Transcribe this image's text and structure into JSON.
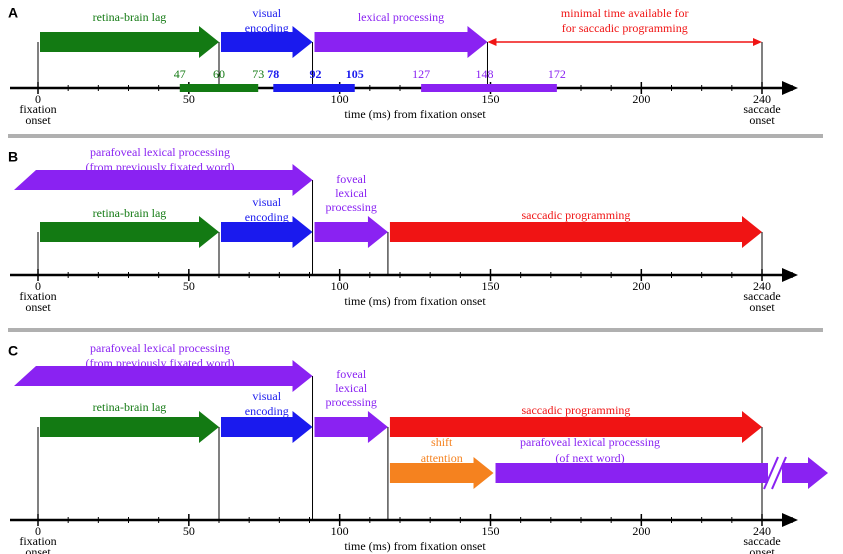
{
  "panels": [
    {
      "letter": "A",
      "arrows": [
        {
          "lines": [
            "retina-brain lag"
          ]
        },
        {
          "lines": [
            "visual",
            "encoding"
          ]
        },
        {
          "lines": [
            "lexical processing"
          ]
        },
        {
          "lines": [
            "minimal time available for",
            "for saccadic programming"
          ]
        }
      ],
      "markers": [
        "47",
        "60",
        "73",
        "78",
        "92",
        "105",
        "127",
        "148",
        "172"
      ],
      "ticks": [
        "0",
        "50",
        "100",
        "150",
        "200",
        "240"
      ],
      "start_label": [
        "fixation",
        "onset"
      ],
      "end_label": [
        "saccade",
        "onset"
      ],
      "axis_title": "time (ms) from fixation onset"
    },
    {
      "letter": "B",
      "arrows": [
        {
          "lines": [
            "parafoveal lexical processing",
            "(from previously fixated word)"
          ]
        },
        {
          "lines": [
            "retina-brain lag"
          ]
        },
        {
          "lines": [
            "visual",
            "encoding"
          ]
        },
        {
          "lines": [
            "foveal",
            "lexical",
            "processing"
          ]
        },
        {
          "lines": [
            "saccadic programming"
          ]
        }
      ],
      "ticks": [
        "0",
        "50",
        "100",
        "150",
        "200",
        "240"
      ],
      "start_label": [
        "fixation",
        "onset"
      ],
      "end_label": [
        "saccade",
        "onset"
      ],
      "axis_title": "time (ms) from fixation onset"
    },
    {
      "letter": "C",
      "arrows": [
        {
          "lines": [
            "parafoveal lexical processing",
            "(from previously fixated word)"
          ]
        },
        {
          "lines": [
            "retina-brain lag"
          ]
        },
        {
          "lines": [
            "visual",
            "encoding"
          ]
        },
        {
          "lines": [
            "foveal",
            "lexical",
            "processing"
          ]
        },
        {
          "lines": [
            "saccadic programming"
          ]
        },
        {
          "lines": [
            "shift",
            "attention"
          ]
        },
        {
          "lines": [
            "parafoveal lexical processing",
            "(of next word)"
          ]
        }
      ],
      "ticks": [
        "0",
        "50",
        "100",
        "150",
        "200",
        "240"
      ],
      "start_label": [
        "fixation",
        "onset"
      ],
      "end_label": [
        "saccade",
        "onset"
      ],
      "axis_title": "time (ms) from fixation onset"
    }
  ]
}
